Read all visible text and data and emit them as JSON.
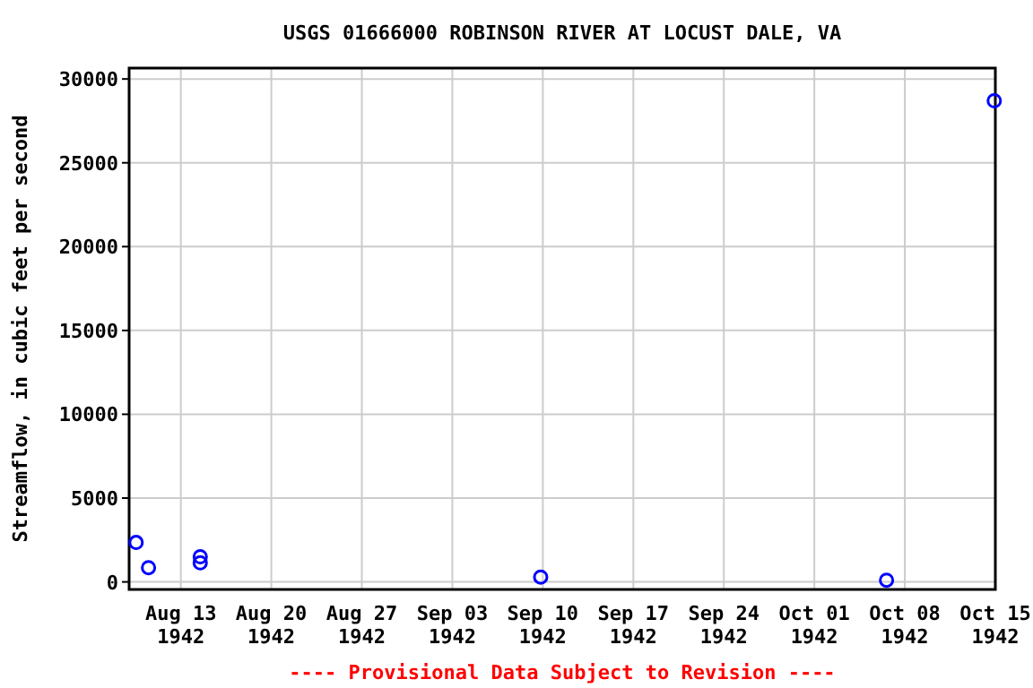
{
  "chart_data": {
    "type": "scatter",
    "title": "USGS 01666000 ROBINSON RIVER AT LOCUST DALE, VA",
    "ylabel": "Streamflow, in cubic feet per second",
    "x": [
      "1942-08-09T13:00",
      "1942-08-10T12:00",
      "1942-08-14T12:00",
      "1942-08-14T12:00",
      "1942-09-09T20:00",
      "1942-10-06T14:00",
      "1942-10-14T22:00"
    ],
    "series": [
      {
        "color": "#0000ff",
        "values": [
          2350,
          850,
          1500,
          1140,
          290,
          100,
          28700
        ]
      }
    ],
    "marker": "circle",
    "grid": true,
    "xlim": [
      "1942-08-09",
      "1942-10-15"
    ],
    "xticks": [
      {
        "value": "1942-08-13",
        "label": "Aug 13\n1942"
      },
      {
        "value": "1942-08-20",
        "label": "Aug 20\n1942"
      },
      {
        "value": "1942-08-27",
        "label": "Aug 27\n1942"
      },
      {
        "value": "1942-09-03",
        "label": "Sep 03\n1942"
      },
      {
        "value": "1942-09-10",
        "label": "Sep 10\n1942"
      },
      {
        "value": "1942-09-17",
        "label": "Sep 17\n1942"
      },
      {
        "value": "1942-09-24",
        "label": "Sep 24\n1942"
      },
      {
        "value": "1942-10-01",
        "label": "Oct 01\n1942"
      },
      {
        "value": "1942-10-08",
        "label": "Oct 08\n1942"
      },
      {
        "value": "1942-10-15",
        "label": "Oct 15\n1942"
      }
    ],
    "ylim": [
      -450,
      30650
    ],
    "yticks": [
      0,
      5000,
      10000,
      15000,
      20000,
      25000,
      30000
    ],
    "annotations": [
      "---- Provisional Data Subject to Revision ----"
    ]
  }
}
